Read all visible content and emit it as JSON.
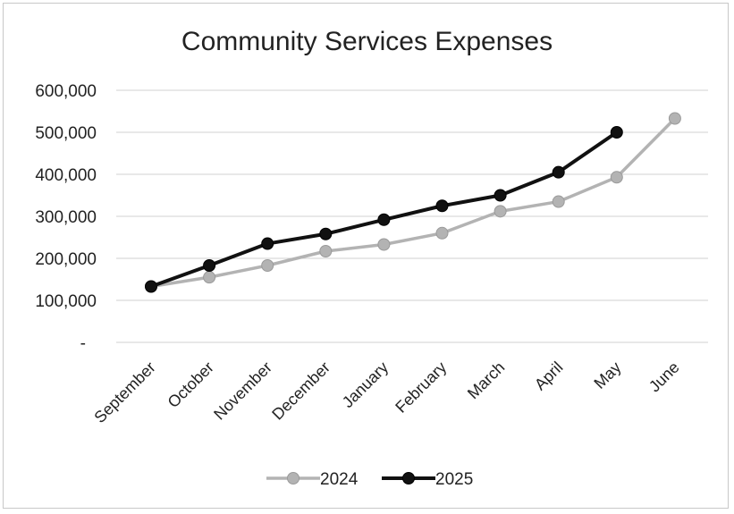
{
  "chart_data": {
    "type": "line",
    "title": "Community Services Expenses",
    "categories": [
      "September",
      "October",
      "November",
      "December",
      "January",
      "February",
      "March",
      "April",
      "May",
      "June"
    ],
    "ytick_labels": [
      "-",
      "100,000",
      "200,000",
      "300,000",
      "400,000",
      "500,000",
      "600,000"
    ],
    "ytick_values": [
      0,
      100000,
      200000,
      300000,
      400000,
      500000,
      600000
    ],
    "ylim": [
      0,
      600000
    ],
    "grid": true,
    "legend_position": "bottom",
    "series": [
      {
        "name": "2024",
        "color": "#b3b3b3",
        "values": [
          133000,
          155000,
          183000,
          217000,
          233000,
          260000,
          312000,
          335000,
          393000,
          533000
        ]
      },
      {
        "name": "2025",
        "color": "#111111",
        "values": [
          133000,
          183000,
          235000,
          258000,
          292000,
          325000,
          350000,
          405000,
          500000,
          null
        ]
      }
    ]
  }
}
